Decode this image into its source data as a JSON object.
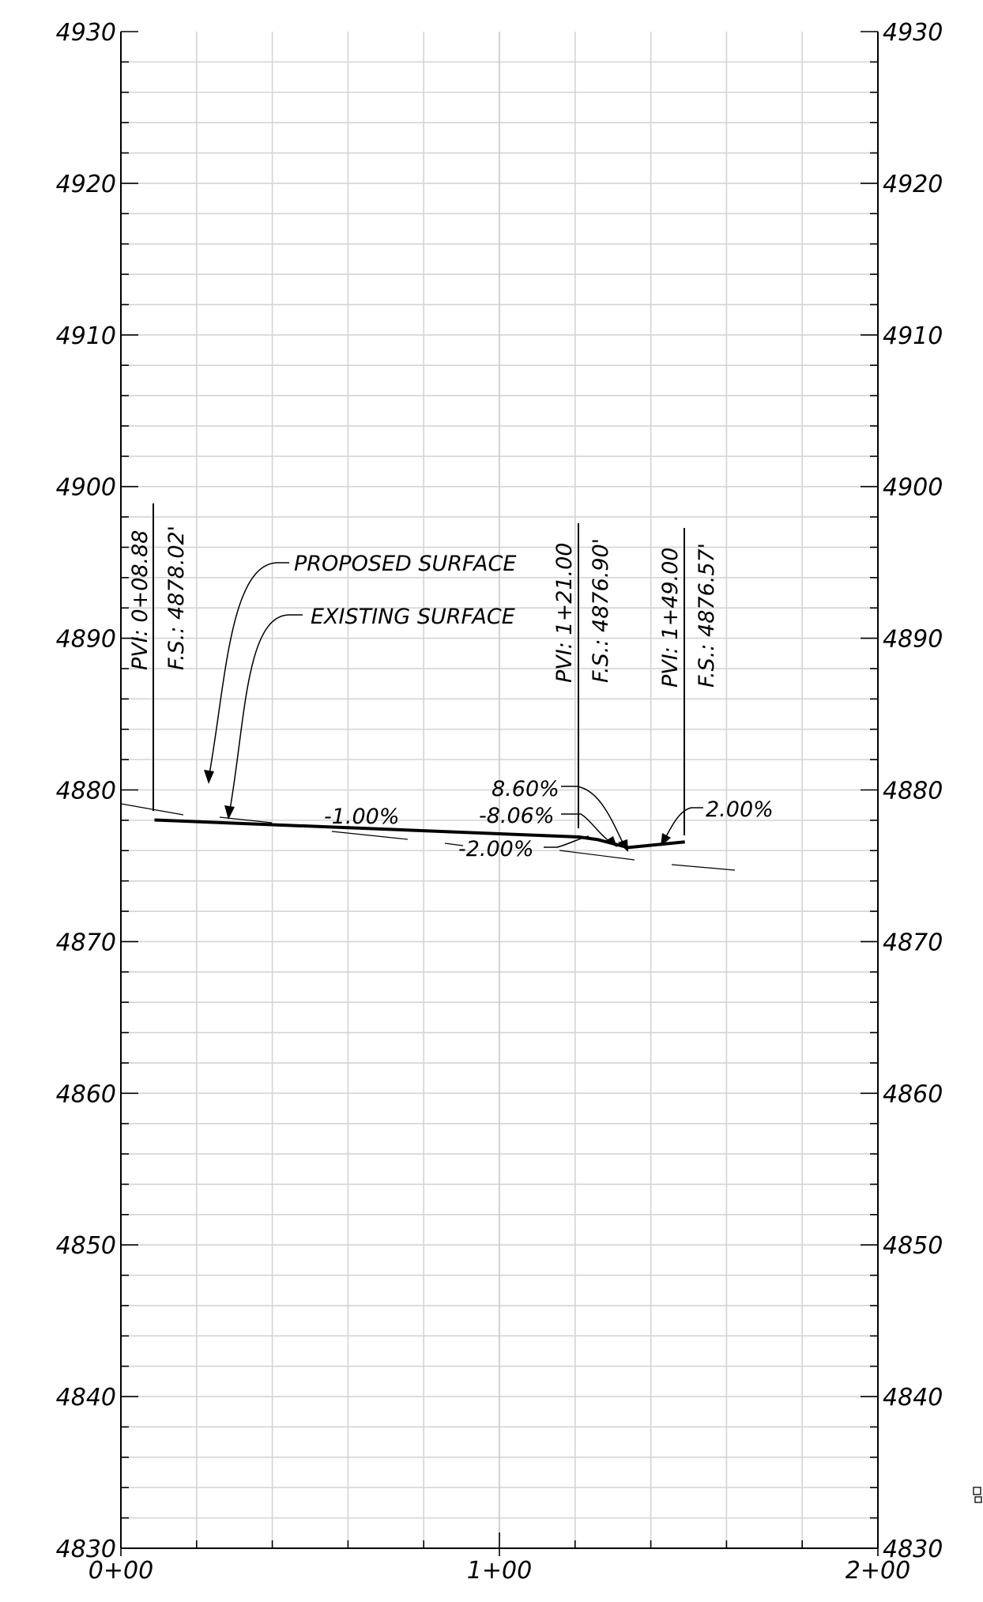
{
  "y_axis": {
    "labels": [
      "4930",
      "4920",
      "4910",
      "4900",
      "4890",
      "4880",
      "4870",
      "4860",
      "4850",
      "4840",
      "4830"
    ]
  },
  "x_axis": {
    "labels": [
      "0+00",
      "1+00",
      "2+00"
    ]
  },
  "annotations": {
    "proposed_surface": "PROPOSED SURFACE",
    "existing_surface": "EXISTING SURFACE",
    "grade_1": "-1.00%",
    "grade_2": "8.60%",
    "grade_3": "-8.06%",
    "grade_4": "-2.00%",
    "grade_5": "2.00%"
  },
  "pvis": [
    {
      "pvi": "PVI:  0+08.88",
      "fs": "F.S.:  4878.02'"
    },
    {
      "pvi": "PVI:  1+21.00",
      "fs": "F.S.:  4876.90'"
    },
    {
      "pvi": "PVI:  1+49.00",
      "fs": "F.S.:  4876.57'"
    }
  ],
  "chart_data": {
    "type": "line",
    "xlabel": "",
    "ylabel": "",
    "xlim": [
      0,
      200
    ],
    "ylim": [
      4830,
      4930
    ],
    "grid": true,
    "series": [
      {
        "name": "PROPOSED SURFACE",
        "points": [
          [
            8.88,
            4878.02
          ],
          [
            121.0,
            4876.9
          ],
          [
            126.0,
            4876.72
          ],
          [
            134.0,
            4876.2
          ],
          [
            149.0,
            4876.57
          ]
        ]
      }
    ],
    "grade_labels": [
      "-1.00%",
      "8.60%",
      "-8.06%",
      "-2.00%",
      "2.00%"
    ]
  }
}
